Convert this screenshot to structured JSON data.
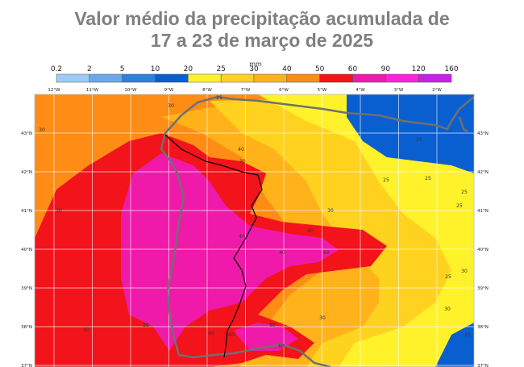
{
  "title": {
    "line1": "Valor médio da precipitação acumulada de",
    "line2": "17 a 23 de março de 2025"
  },
  "legend": {
    "unit": "mm",
    "ticks": [
      "0.2",
      "2",
      "5",
      "10",
      "20",
      "25",
      "30",
      "40",
      "50",
      "60",
      "90",
      "120",
      "160"
    ],
    "colors": [
      "#9ecbf5",
      "#6ea6ea",
      "#2f7fe0",
      "#0a5fd0",
      "#fff22a",
      "#ffd21f",
      "#ffb219",
      "#ff8c14",
      "#f2131b",
      "#ef1aa9",
      "#ff21df",
      "#c91ee8"
    ]
  },
  "map": {
    "lon_labels": [
      "12°W",
      "11°W",
      "10°W",
      "9°W",
      "8°W",
      "7°W",
      "6°W",
      "5°W",
      "4°W",
      "3°W",
      "2°W"
    ],
    "lat_labels": [
      "43°N",
      "42°N",
      "41°N",
      "40°N",
      "39°N",
      "38°N",
      "37°N"
    ],
    "contour_labels": [
      "25",
      "30",
      "40",
      "30",
      "30",
      "30",
      "30",
      "30",
      "40",
      "40",
      "60",
      "60",
      "30",
      "30",
      "25",
      "25",
      "25",
      "25",
      "25",
      "30",
      "30",
      "40",
      "60",
      "40",
      "25",
      "40",
      "25"
    ],
    "colors": {
      "c20": "#0a5fd0",
      "c25": "#fff22a",
      "c30": "#ffd21f",
      "c40": "#ffb219",
      "c50": "#ff8c14",
      "c60": "#f2131b",
      "c90": "#ef1aa9",
      "coast": "#707070",
      "border": "#000000",
      "grid": "#ffffff"
    }
  }
}
